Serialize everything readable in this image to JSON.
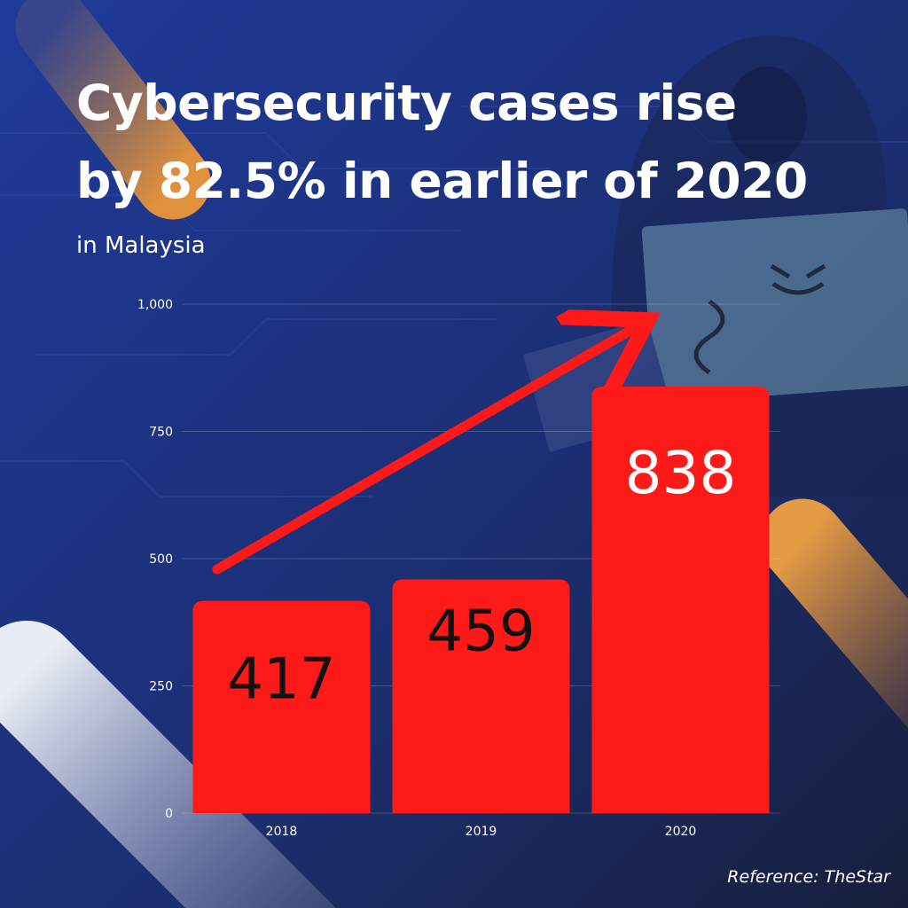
{
  "header": {
    "title_line1": "Cybersecurity cases rise",
    "title_line2": "by 82.5% in earlier of 2020",
    "subtitle": "in Malaysia"
  },
  "footer": {
    "reference": "Reference: TheStar"
  },
  "colors": {
    "background": "#1b2d6e",
    "bar": "#ff1a1a",
    "arrow": "#ff1a1a",
    "accent_orange": "#d98a3a"
  },
  "chart_data": {
    "type": "bar",
    "categories": [
      "2018",
      "2019",
      "2020"
    ],
    "values": [
      417,
      459,
      838
    ],
    "value_labels": [
      "417",
      "459",
      "838"
    ],
    "ylim": [
      0,
      1000
    ],
    "yticks": [
      0,
      250,
      500,
      750,
      1000
    ],
    "ytick_labels": [
      "0",
      "250",
      "500",
      "750",
      "1,000"
    ],
    "grid": true,
    "trend_arrow": true,
    "xlabel": "",
    "ylabel": ""
  }
}
